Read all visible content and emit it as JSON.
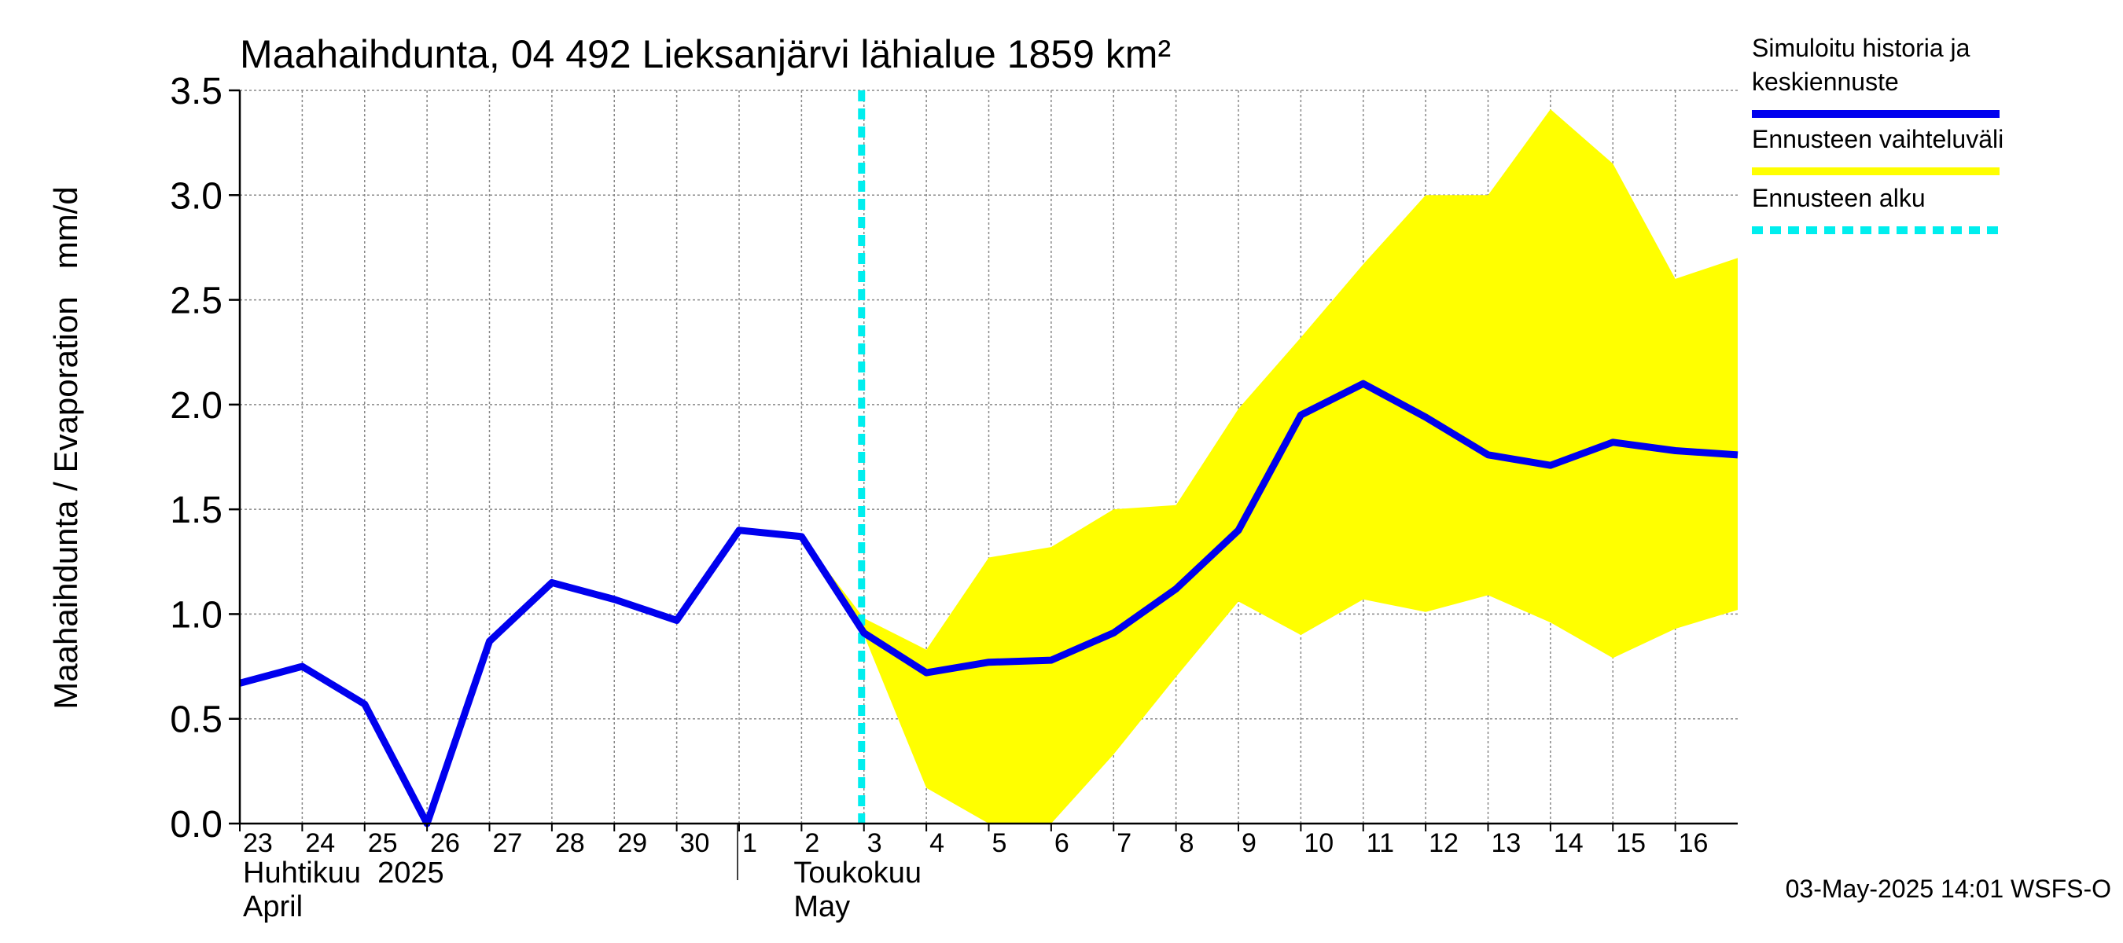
{
  "chart_data": {
    "type": "line",
    "title": "Maahaihdunta, 04 492 Lieksanjärvi lähialue 1859 km²",
    "ylabel": "Maahaihdunta / Evaporation   mm/d",
    "ylim": [
      0,
      3.5
    ],
    "yticks": [
      "0.0",
      "0.5",
      "1.0",
      "1.5",
      "2.0",
      "2.5",
      "3.0",
      "3.5"
    ],
    "x_tick_labels": [
      "23",
      "24",
      "25",
      "26",
      "27",
      "28",
      "29",
      "30",
      "1",
      "2",
      "3",
      "4",
      "5",
      "6",
      "7",
      "8",
      "9",
      "10",
      "11",
      "12",
      "13",
      "14",
      "15",
      "16"
    ],
    "month_labels": [
      {
        "line1": "Huhtikuu  2025",
        "line2": "April"
      },
      {
        "line1": "Toukokuu",
        "line2": "May"
      }
    ],
    "forecast_start_x": 10,
    "series": [
      {
        "name": "Simuloitu historia ja keskiennuste",
        "color": "#0000ee",
        "x": [
          0,
          1,
          2,
          3,
          4,
          5,
          6,
          7,
          8,
          9,
          10,
          11,
          12,
          13,
          14,
          15,
          16,
          17,
          18,
          19,
          20,
          21,
          22,
          23,
          24
        ],
        "values": [
          0.67,
          0.75,
          0.57,
          0.0,
          0.87,
          1.15,
          1.07,
          0.97,
          1.4,
          1.37,
          0.91,
          0.72,
          0.77,
          0.78,
          0.91,
          1.12,
          1.4,
          1.95,
          2.1,
          1.94,
          1.76,
          1.71,
          1.82,
          1.78,
          1.76
        ]
      }
    ],
    "band": {
      "name": "Ennusteen vaihteluväli",
      "color": "#ffff00",
      "x": [
        9,
        10,
        11,
        12,
        13,
        14,
        15,
        16,
        17,
        18,
        19,
        20,
        21,
        22,
        23,
        24
      ],
      "upper": [
        1.37,
        0.98,
        0.83,
        1.27,
        1.32,
        1.5,
        1.52,
        1.98,
        2.32,
        2.67,
        3.0,
        3.0,
        3.41,
        3.15,
        2.6,
        2.7
      ],
      "lower": [
        1.34,
        0.9,
        0.17,
        0.0,
        0.0,
        0.33,
        0.7,
        1.06,
        0.9,
        1.07,
        1.01,
        1.09,
        0.96,
        0.79,
        0.93,
        1.02
      ]
    },
    "legend": {
      "placement": "right",
      "entries": [
        {
          "label": "Simuloitu historia ja",
          "label2": "keskiennuste",
          "color": "#0000ee",
          "style": "solid"
        },
        {
          "label": "Ennusteen vaihteluväli",
          "label2": "",
          "color": "#ffff00",
          "style": "solid"
        },
        {
          "label": "Ennusteen alku",
          "label2": "",
          "color": "#00eeee",
          "style": "dashed"
        }
      ]
    },
    "forecast_line_color": "#00eeee",
    "grid": true,
    "footer": "03-May-2025 14:01 WSFS-O"
  }
}
